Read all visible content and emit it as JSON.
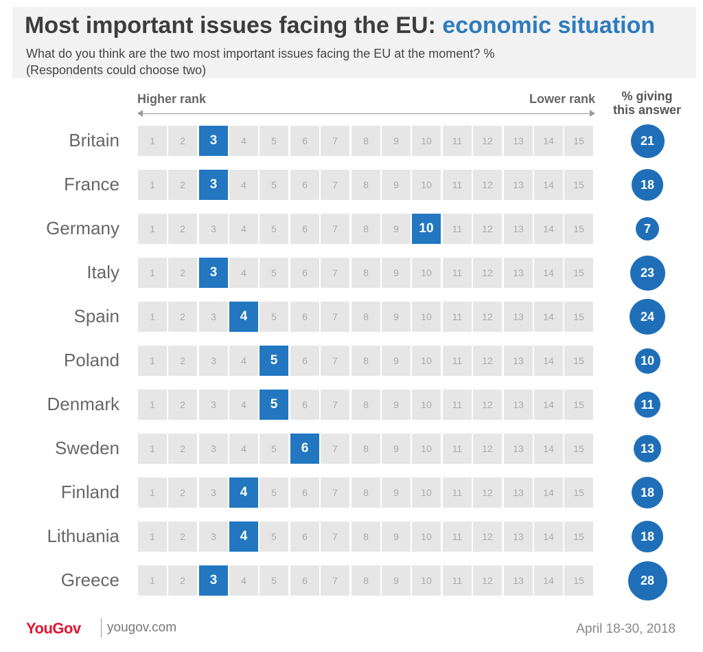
{
  "title": {
    "main": "Most important issues facing the EU: ",
    "accent": "economic situation"
  },
  "subtitle": "What do you think are the two most important issues facing the EU at the moment? %\n(Respondents could choose two)",
  "rank_axis": {
    "left_label": "Higher rank",
    "right_label": "Lower rank"
  },
  "column_header": "% giving\nthis answer",
  "colors": {
    "accent": "#2e7bbd",
    "highlight": "#2277c0",
    "badge": "#1f6fb8",
    "cell": "#e6e6e6",
    "brand": "#e1142d"
  },
  "chart_data": {
    "type": "table",
    "rank_scale": [
      1,
      2,
      3,
      4,
      5,
      6,
      7,
      8,
      9,
      10,
      11,
      12,
      13,
      14,
      15
    ],
    "rows": [
      {
        "country": "Britain",
        "rank": 3,
        "percent": 21
      },
      {
        "country": "France",
        "rank": 3,
        "percent": 18
      },
      {
        "country": "Germany",
        "rank": 10,
        "percent": 7
      },
      {
        "country": "Italy",
        "rank": 3,
        "percent": 23
      },
      {
        "country": "Spain",
        "rank": 4,
        "percent": 24
      },
      {
        "country": "Poland",
        "rank": 5,
        "percent": 10
      },
      {
        "country": "Denmark",
        "rank": 5,
        "percent": 11
      },
      {
        "country": "Sweden",
        "rank": 6,
        "percent": 13
      },
      {
        "country": "Finland",
        "rank": 4,
        "percent": 18
      },
      {
        "country": "Lithuania",
        "rank": 4,
        "percent": 18
      },
      {
        "country": "Greece",
        "rank": 3,
        "percent": 28
      }
    ]
  },
  "footer": {
    "brand": "YouGov",
    "site": "yougov.com",
    "date": "April 18-30, 2018"
  }
}
